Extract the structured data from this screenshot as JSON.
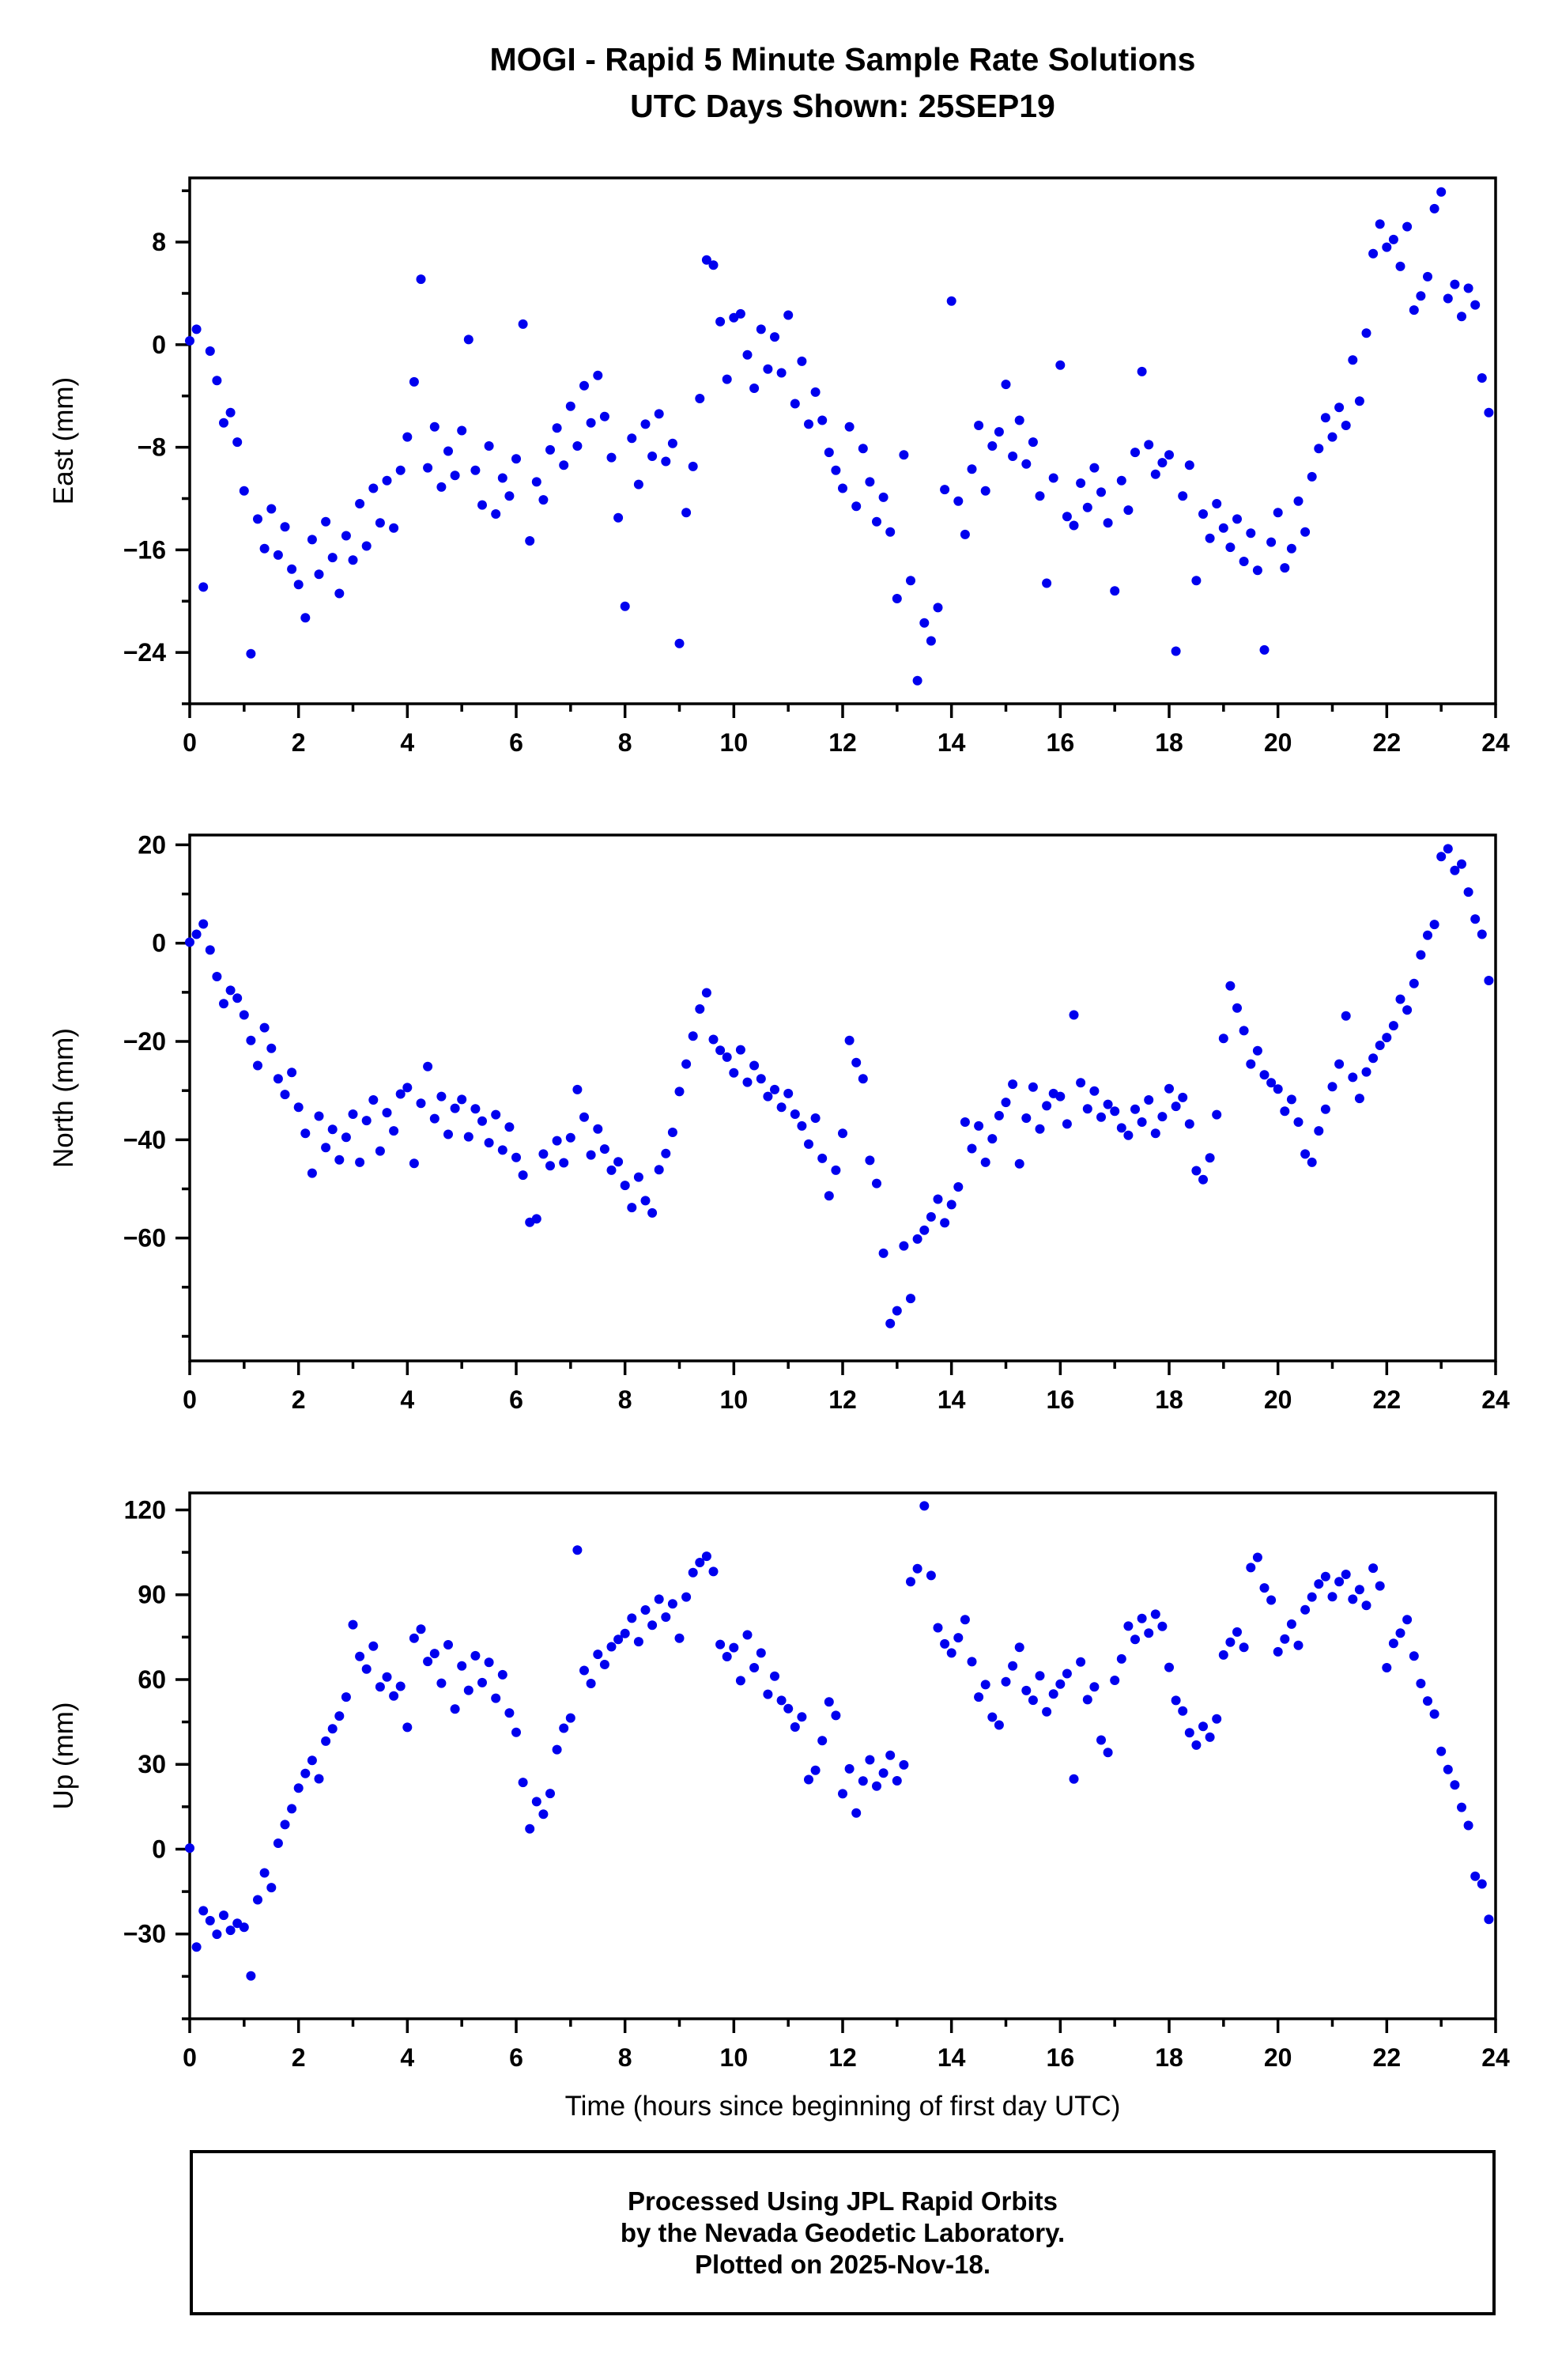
{
  "title": {
    "line1": "MOGI - Rapid 5 Minute Sample Rate Solutions",
    "line2": "UTC Days Shown:  25SEP19"
  },
  "footer": {
    "line1": "Processed Using JPL Rapid Orbits",
    "line2": "by the Nevada Geodetic Laboratory.",
    "line3": "Plotted on 2025-Nov-18."
  },
  "style": {
    "point_color": "#0000ee",
    "axis_color": "#000000",
    "background": "#ffffff"
  },
  "chart_data": [
    {
      "type": "scatter",
      "name": "east",
      "title": "",
      "xlabel": "",
      "ylabel": "East (mm)",
      "grid": false,
      "legend": "none",
      "xlim": [
        0,
        24
      ],
      "ylim": [
        -28,
        13
      ],
      "xticks": [
        0,
        2,
        4,
        6,
        8,
        10,
        12,
        14,
        16,
        18,
        20,
        22,
        24
      ],
      "xtick_labels": [
        "0",
        "2",
        "4",
        "6",
        "8",
        "10",
        "12",
        "14",
        "16",
        "18",
        "20",
        "22",
        "24"
      ],
      "xminor_step": 1,
      "yticks": [
        8,
        0,
        -8,
        -16,
        -24
      ],
      "ytick_labels": [
        "8",
        "0",
        "−8",
        "−16",
        "−24"
      ],
      "yminor_step": 4,
      "x_start": 0,
      "x_step": 0.125,
      "y": [
        0.3,
        1.2,
        -18.9,
        -0.5,
        -2.8,
        -6.1,
        -5.3,
        -7.6,
        -11.4,
        -24.1,
        -13.6,
        -15.9,
        -12.8,
        -16.4,
        -14.2,
        -17.5,
        -18.7,
        -21.3,
        -15.2,
        -17.9,
        -13.8,
        -16.6,
        -19.4,
        -14.9,
        -16.8,
        -12.4,
        -15.7,
        -11.2,
        -13.9,
        -10.6,
        -14.3,
        -9.8,
        -7.2,
        -2.9,
        5.1,
        -9.6,
        -6.4,
        -11.1,
        -8.3,
        -10.2,
        -6.7,
        0.4,
        -9.8,
        -12.5,
        -7.9,
        -13.2,
        -10.4,
        -11.8,
        -8.9,
        1.6,
        -15.3,
        -10.7,
        -12.1,
        -8.2,
        -6.5,
        -9.4,
        -4.8,
        -7.9,
        -3.2,
        -6.1,
        -2.4,
        -5.6,
        -8.8,
        -13.5,
        -20.4,
        -7.3,
        -10.9,
        -6.2,
        -8.7,
        -5.4,
        -9.1,
        -7.7,
        -23.3,
        -13.1,
        -9.5,
        -4.2,
        6.6,
        6.2,
        1.8,
        -2.7,
        2.1,
        2.4,
        -0.8,
        -3.4,
        1.2,
        -1.9,
        0.6,
        -2.2,
        2.3,
        -4.6,
        -1.3,
        -6.2,
        -3.7,
        -5.9,
        -8.4,
        -9.8,
        -11.2,
        -6.4,
        -12.6,
        -8.1,
        -10.7,
        -13.8,
        -11.9,
        -14.6,
        -19.8,
        -8.6,
        -18.4,
        -26.2,
        -21.7,
        -23.1,
        -20.5,
        -11.3,
        3.4,
        -12.2,
        -14.8,
        -9.7,
        -6.3,
        -11.4,
        -7.9,
        -6.8,
        -3.1,
        -8.7,
        -5.9,
        -9.3,
        -7.6,
        -11.8,
        -18.6,
        -10.4,
        -1.6,
        -13.4,
        -14.1,
        -10.8,
        -12.7,
        -9.6,
        -11.5,
        -13.9,
        -19.2,
        -10.6,
        -12.9,
        -8.4,
        -2.1,
        -7.8,
        -10.1,
        -9.2,
        -8.6,
        -23.9,
        -11.8,
        -9.4,
        -18.4,
        -13.2,
        -15.1,
        -12.4,
        -14.3,
        -15.8,
        -13.6,
        -16.9,
        -14.7,
        -17.6,
        -23.8,
        -15.4,
        -13.1,
        -17.4,
        -15.9,
        -12.2,
        -14.6,
        -10.3,
        -8.1,
        -5.7,
        -7.2,
        -4.9,
        -6.3,
        -1.2,
        -4.4,
        0.9,
        7.1,
        9.4,
        7.6,
        8.2,
        6.1,
        9.2,
        2.7,
        3.8,
        5.3,
        10.6,
        11.9,
        3.6,
        4.7,
        2.2,
        4.4,
        3.1,
        -2.6,
        -5.3
      ]
    },
    {
      "type": "scatter",
      "name": "north",
      "title": "",
      "xlabel": "",
      "ylabel": "North (mm)",
      "grid": false,
      "legend": "none",
      "xlim": [
        0,
        24
      ],
      "ylim": [
        -85,
        22
      ],
      "xticks": [
        0,
        2,
        4,
        6,
        8,
        10,
        12,
        14,
        16,
        18,
        20,
        22,
        24
      ],
      "xtick_labels": [
        "0",
        "2",
        "4",
        "6",
        "8",
        "10",
        "12",
        "14",
        "16",
        "18",
        "20",
        "22",
        "24"
      ],
      "xminor_step": 1,
      "yticks": [
        20,
        0,
        -20,
        -40,
        -60
      ],
      "ytick_labels": [
        "20",
        "0",
        "−20",
        "−40",
        "−60"
      ],
      "yminor_step": 10,
      "x_start": 0,
      "x_step": 0.125,
      "y": [
        0.2,
        1.8,
        3.9,
        -1.4,
        -6.8,
        -12.3,
        -9.6,
        -11.2,
        -14.6,
        -19.8,
        -24.9,
        -17.2,
        -21.4,
        -27.6,
        -30.8,
        -26.3,
        -33.4,
        -38.7,
        -46.8,
        -35.2,
        -41.6,
        -37.9,
        -44.1,
        -39.5,
        -34.8,
        -44.6,
        -36.1,
        -31.9,
        -42.3,
        -34.5,
        -38.2,
        -30.7,
        -29.4,
        -44.8,
        -32.6,
        -25.1,
        -35.7,
        -31.2,
        -38.9,
        -33.6,
        -31.8,
        -39.4,
        -33.7,
        -36.2,
        -40.6,
        -34.9,
        -42.1,
        -37.4,
        -43.6,
        -47.2,
        -56.8,
        -56.1,
        -42.9,
        -45.3,
        -40.2,
        -44.7,
        -39.6,
        -29.8,
        -35.4,
        -43.1,
        -37.8,
        -41.9,
        -46.2,
        -44.5,
        -49.3,
        -53.8,
        -47.6,
        -52.4,
        -54.9,
        -46.1,
        -42.8,
        -38.5,
        -30.2,
        -24.6,
        -18.9,
        -13.4,
        -10.1,
        -19.6,
        -21.8,
        -23.2,
        -26.4,
        -21.7,
        -28.3,
        -24.9,
        -27.6,
        -31.2,
        -29.8,
        -33.4,
        -30.6,
        -34.8,
        -37.2,
        -40.9,
        -35.6,
        -43.8,
        -51.4,
        -46.2,
        -38.7,
        -19.8,
        -24.3,
        -27.6,
        -44.2,
        -48.9,
        -63.1,
        -77.4,
        -74.8,
        -61.6,
        -72.3,
        -60.2,
        -58.4,
        -55.7,
        -52.1,
        -56.9,
        -53.2,
        -49.6,
        -36.4,
        -41.8,
        -37.2,
        -44.6,
        -39.8,
        -35.1,
        -32.4,
        -28.7,
        -44.9,
        -35.6,
        -29.3,
        -37.8,
        -33.1,
        -30.6,
        -31.2,
        -36.8,
        -14.6,
        -28.4,
        -33.7,
        -30.1,
        -35.4,
        -32.8,
        -34.2,
        -37.6,
        -39.1,
        -33.8,
        -36.4,
        -31.9,
        -38.7,
        -35.3,
        -29.6,
        -33.2,
        -31.4,
        -36.8,
        -46.3,
        -48.1,
        -43.7,
        -34.9,
        -19.4,
        -8.7,
        -13.2,
        -17.8,
        -24.6,
        -21.9,
        -26.8,
        -28.4,
        -29.7,
        -34.2,
        -31.8,
        -36.4,
        -42.9,
        -44.6,
        -38.2,
        -33.8,
        -29.2,
        -24.6,
        -14.8,
        -27.3,
        -31.6,
        -26.2,
        -23.4,
        -20.8,
        -19.2,
        -16.8,
        -11.4,
        -13.6,
        -8.2,
        -2.4,
        1.6,
        3.8,
        17.6,
        19.2,
        14.8,
        16.1,
        10.4,
        4.9,
        1.8,
        -7.6
      ]
    },
    {
      "type": "scatter",
      "name": "up",
      "title": "",
      "xlabel": "Time (hours since beginning of first day UTC)",
      "ylabel": "Up (mm)",
      "grid": false,
      "legend": "none",
      "xlim": [
        0,
        24
      ],
      "ylim": [
        -60,
        126
      ],
      "xticks": [
        0,
        2,
        4,
        6,
        8,
        10,
        12,
        14,
        16,
        18,
        20,
        22,
        24
      ],
      "xtick_labels": [
        "0",
        "2",
        "4",
        "6",
        "8",
        "10",
        "12",
        "14",
        "16",
        "18",
        "20",
        "22",
        "24"
      ],
      "xminor_step": 1,
      "yticks": [
        120,
        90,
        60,
        30,
        0,
        -30
      ],
      "ytick_labels": [
        "120",
        "90",
        "60",
        "30",
        "0",
        "−30"
      ],
      "yminor_step": 15,
      "x_start": 0,
      "x_step": 0.125,
      "y": [
        0.4,
        -34.6,
        -21.8,
        -25.3,
        -30.1,
        -23.4,
        -28.7,
        -26.2,
        -27.6,
        -44.8,
        -17.9,
        -8.4,
        -13.6,
        2.1,
        8.7,
        14.3,
        21.6,
        26.8,
        31.4,
        24.9,
        38.2,
        42.6,
        47.1,
        53.8,
        79.4,
        68.2,
        63.7,
        71.8,
        57.4,
        60.9,
        54.2,
        57.6,
        43.1,
        74.6,
        77.8,
        66.4,
        69.2,
        58.7,
        72.3,
        49.6,
        64.8,
        56.2,
        68.4,
        58.9,
        66.1,
        53.4,
        61.7,
        48.2,
        41.3,
        23.6,
        7.2,
        16.8,
        12.4,
        19.7,
        35.2,
        42.8,
        46.4,
        105.8,
        63.2,
        58.6,
        68.9,
        65.3,
        71.6,
        74.2,
        76.3,
        81.7,
        73.4,
        84.6,
        79.2,
        88.4,
        82.1,
        86.8,
        74.6,
        89.2,
        97.8,
        101.4,
        103.6,
        98.2,
        72.4,
        68.1,
        71.3,
        59.6,
        75.8,
        64.2,
        69.4,
        54.8,
        61.2,
        52.6,
        49.7,
        43.2,
        46.8,
        24.6,
        27.9,
        38.4,
        52.1,
        47.3,
        19.6,
        28.4,
        12.8,
        24.1,
        31.6,
        22.3,
        26.9,
        33.2,
        24.2,
        29.8,
        94.6,
        99.2,
        121.4,
        96.8,
        78.3,
        72.6,
        69.4,
        74.8,
        81.2,
        66.3,
        53.8,
        58.2,
        46.7,
        43.9,
        59.2,
        64.8,
        71.4,
        56.1,
        52.7,
        61.3,
        48.6,
        54.9,
        58.4,
        62.1,
        24.8,
        66.2,
        52.9,
        57.4,
        38.6,
        34.2,
        59.7,
        67.3,
        78.9,
        74.2,
        81.6,
        76.4,
        83.1,
        78.8,
        64.3,
        52.6,
        48.9,
        41.2,
        36.8,
        43.4,
        39.6,
        46.1,
        68.7,
        73.2,
        76.8,
        71.4,
        99.6,
        103.2,
        92.4,
        88.1,
        69.8,
        74.3,
        79.6,
        72.1,
        84.7,
        89.2,
        93.8,
        96.4,
        89.3,
        94.6,
        97.2,
        88.4,
        91.8,
        86.2,
        99.4,
        93.1,
        64.2,
        72.8,
        76.4,
        81.2,
        68.3,
        58.6,
        52.4,
        47.8,
        34.6,
        28.2,
        22.7,
        14.8,
        8.4,
        -9.6,
        -12.3,
        -24.8
      ]
    }
  ]
}
